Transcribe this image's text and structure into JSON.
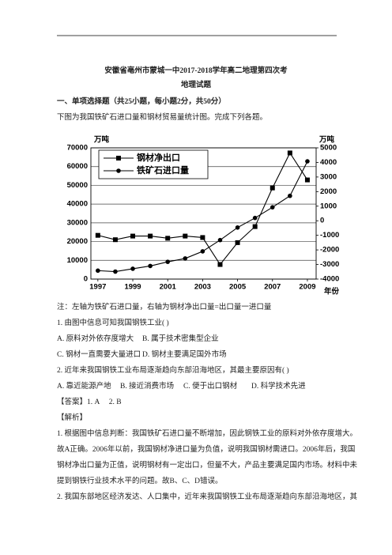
{
  "header": {
    "title": "安徽省亳州市蒙城一中2017-2018学年高二地理第四次考",
    "subtitle": "地理试题"
  },
  "section": "一、单项选择题（共25小题，每小题2分，共50分）",
  "intro": "下图为我国铁矿石进口量和钢材贸易量统计图。完成下列各题。",
  "chart_data": {
    "type": "line",
    "x": [
      1997,
      1998,
      1999,
      2000,
      2001,
      2002,
      2003,
      2004,
      2005,
      2006,
      2007,
      2008,
      2009
    ],
    "xlim": [
      1996.6,
      2009.5
    ],
    "xticks": [
      1997,
      1999,
      2001,
      2003,
      2005,
      2007,
      2009
    ],
    "x_label": "年份",
    "y_label": "万吨",
    "y2_label": "万吨",
    "ylim": [
      0,
      70000
    ],
    "yticks": [
      0,
      10000,
      20000,
      30000,
      40000,
      50000,
      60000,
      70000
    ],
    "y2lim": [
      -4000,
      5000
    ],
    "y2ticks": [
      -4000,
      -3000,
      -2000,
      -1000,
      0,
      1000,
      2000,
      3000,
      4000,
      5000
    ],
    "grid": true,
    "legend": "upper left",
    "series": [
      {
        "name": "钢材净出口",
        "color": "#000000",
        "marker": "square",
        "axis": "y2",
        "values": [
          -1000,
          -1300,
          -1050,
          -1050,
          -1200,
          -1050,
          -1150,
          -3000,
          -1500,
          -400,
          2250,
          4650,
          2800
        ]
      },
      {
        "name": "铁矿石进口量",
        "color": "#000000",
        "marker": "circle",
        "values": [
          4500,
          4000,
          5500,
          7000,
          9200,
          11000,
          14800,
          20800,
          27500,
          32600,
          38300,
          44400,
          62800
        ]
      }
    ]
  },
  "note": "注：左轴为铁矿石进口量，右轴为钢材净出口量=出口量一进口量",
  "questions": [
    {
      "stem": "1. 由图中信息可知我国钢铁工业(    )",
      "options": [
        "A. 原料对外依存度增大",
        "B. 属于技术密集型企业",
        "C. 钢材一直需要大量进口",
        "D. 钢材主要满足国外市场"
      ]
    },
    {
      "stem": "2. 近年来我国钢铁工业布局逐渐趋向东部沿海地区，其最主要原因有(    )",
      "options": [
        "A. 靠近能源产地",
        "B. 接近消费市场",
        "C. 便于出口钢材",
        "D. 科学技术先进"
      ]
    }
  ],
  "answer": "【答案】1. A     2. B",
  "analysis_heading": "【解析】",
  "analysis_lines": [
    "1. 根据图中信息判断：我国铁矿石进口量不断增加，因此钢铁工业的原料对外依存度增大。",
    "故A正确。2006年以前，我国钢材净进口量为负值，说明我国钢材需进口。2006年后，我国",
    "钢材净出口量为正值，说明钢材有一定出口，但量不大，产品主要满足国内市场。材料中未",
    "提到钢铁行业技术水平的问题。故B、C、D错误。",
    "2. 我国东部地区经济发达、人口集中，近年来我国钢铁工业布局逐渐趋向东部沿海地区，其"
  ]
}
